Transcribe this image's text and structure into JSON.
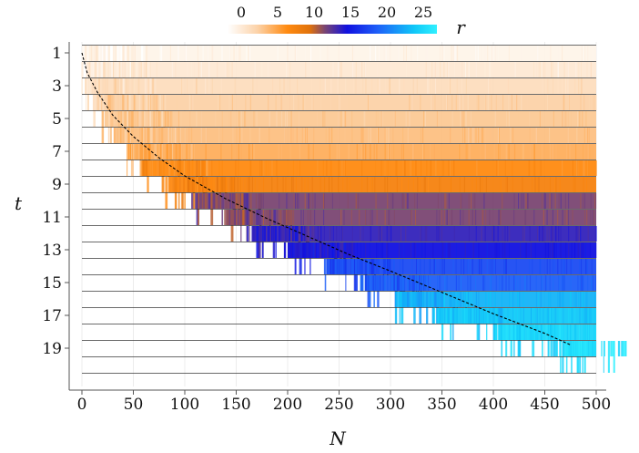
{
  "chart_data": {
    "type": "heatmap",
    "title": "",
    "xlabel": "N",
    "ylabel": "t",
    "xlim": [
      0,
      500
    ],
    "ylim": [
      1,
      20
    ],
    "x_ticks": [
      "0",
      "50",
      "100",
      "150",
      "200",
      "250",
      "300",
      "350",
      "400",
      "450",
      "500"
    ],
    "y_ticks": [
      "1",
      "3",
      "5",
      "7",
      "9",
      "11",
      "13",
      "15",
      "17",
      "19"
    ],
    "colorbar": {
      "label": "r",
      "ticks": [
        "0",
        "5",
        "10",
        "15",
        "20",
        "25"
      ],
      "range": [
        0,
        28
      ],
      "stops": [
        {
          "v": 0,
          "color": "#ffffff"
        },
        {
          "v": 4,
          "color": "#fcd2a8"
        },
        {
          "v": 8,
          "color": "#ff8a10"
        },
        {
          "v": 11,
          "color": "#e0720c"
        },
        {
          "v": 13,
          "color": "#7a4672"
        },
        {
          "v": 16,
          "color": "#1010e0"
        },
        {
          "v": 20,
          "color": "#1e5ef8"
        },
        {
          "v": 25,
          "color": "#10c8f8"
        },
        {
          "v": 28,
          "color": "#30f0ff"
        }
      ]
    },
    "rows": [
      {
        "t": 1,
        "r": 1,
        "n_min": 0
      },
      {
        "t": 2,
        "r": 2,
        "n_min": 5
      },
      {
        "t": 3,
        "r": 3,
        "n_min": 8
      },
      {
        "t": 4,
        "r": 4,
        "n_min": 14
      },
      {
        "t": 5,
        "r": 4.5,
        "n_min": 22
      },
      {
        "t": 6,
        "r": 5,
        "n_min": 32
      },
      {
        "t": 7,
        "r": 6,
        "n_min": 45
      },
      {
        "t": 8,
        "r": 8,
        "n_min": 62
      },
      {
        "t": 9,
        "r": 9,
        "n_min": 85
      },
      {
        "t": 10,
        "r": 13,
        "n_min": 112
      },
      {
        "t": 11,
        "r": 13,
        "n_min": 140
      },
      {
        "t": 12,
        "r": 15,
        "n_min": 165
      },
      {
        "t": 13,
        "r": 16,
        "n_min": 200
      },
      {
        "t": 14,
        "r": 19,
        "n_min": 240
      },
      {
        "t": 15,
        "r": 20,
        "n_min": 275
      },
      {
        "t": 16,
        "r": 24,
        "n_min": 310
      },
      {
        "t": 17,
        "r": 25,
        "n_min": 345
      },
      {
        "t": 18,
        "r": 26,
        "n_min": 405
      },
      {
        "t": 19,
        "r": 27,
        "n_min": 470
      }
    ],
    "bound_curve": [
      {
        "N": 0,
        "t": 1
      },
      {
        "N": 5,
        "t": 2.2
      },
      {
        "N": 15,
        "t": 3.4
      },
      {
        "N": 30,
        "t": 4.8
      },
      {
        "N": 50,
        "t": 6.1
      },
      {
        "N": 75,
        "t": 7.4
      },
      {
        "N": 100,
        "t": 8.5
      },
      {
        "N": 140,
        "t": 9.9
      },
      {
        "N": 180,
        "t": 11.1
      },
      {
        "N": 220,
        "t": 12.2
      },
      {
        "N": 260,
        "t": 13.3
      },
      {
        "N": 300,
        "t": 14.3
      },
      {
        "N": 350,
        "t": 15.6
      },
      {
        "N": 400,
        "t": 16.9
      },
      {
        "N": 450,
        "t": 18.1
      },
      {
        "N": 475,
        "t": 18.8
      }
    ],
    "grid": true
  }
}
